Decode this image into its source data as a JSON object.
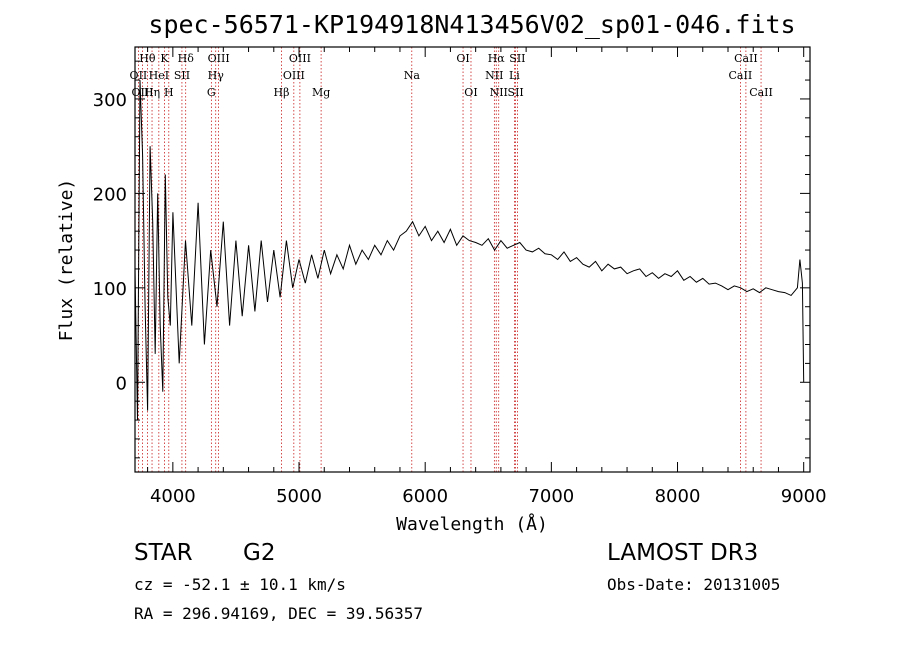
{
  "chart_data": {
    "type": "line",
    "title": "spec-56571-KP194918N413456V02_sp01-046.fits",
    "xlabel": "Wavelength (Å)",
    "ylabel": "Flux (relative)",
    "xlim": [
      3700,
      9050
    ],
    "ylim": [
      -95,
      355
    ],
    "xticks": [
      4000,
      5000,
      6000,
      7000,
      8000,
      9000
    ],
    "yticks": [
      0,
      100,
      200,
      300
    ],
    "grid": false,
    "series": [
      {
        "name": "spectrum",
        "x": [
          3700,
          3720,
          3740,
          3760,
          3780,
          3800,
          3820,
          3840,
          3860,
          3880,
          3900,
          3920,
          3940,
          3960,
          3980,
          4000,
          4050,
          4100,
          4150,
          4200,
          4250,
          4300,
          4350,
          4400,
          4450,
          4500,
          4550,
          4600,
          4650,
          4700,
          4750,
          4800,
          4850,
          4900,
          4950,
          5000,
          5050,
          5100,
          5150,
          5200,
          5250,
          5300,
          5350,
          5400,
          5450,
          5500,
          5550,
          5600,
          5650,
          5700,
          5750,
          5800,
          5850,
          5900,
          5950,
          6000,
          6050,
          6100,
          6150,
          6200,
          6250,
          6300,
          6350,
          6400,
          6450,
          6500,
          6550,
          6600,
          6650,
          6700,
          6750,
          6800,
          6850,
          6900,
          6950,
          7000,
          7050,
          7100,
          7150,
          7200,
          7250,
          7300,
          7350,
          7400,
          7450,
          7500,
          7550,
          7600,
          7650,
          7700,
          7750,
          7800,
          7850,
          7900,
          7950,
          8000,
          8050,
          8100,
          8150,
          8200,
          8250,
          8300,
          8350,
          8400,
          8450,
          8500,
          8550,
          8600,
          8650,
          8700,
          8750,
          8800,
          8850,
          8900,
          8950,
          8970,
          8990,
          9000
        ],
        "values": [
          120,
          -40,
          320,
          240,
          80,
          -30,
          250,
          170,
          30,
          200,
          60,
          -10,
          220,
          90,
          60,
          180,
          20,
          150,
          60,
          190,
          40,
          140,
          80,
          170,
          60,
          150,
          70,
          145,
          75,
          150,
          85,
          140,
          90,
          150,
          100,
          130,
          105,
          135,
          110,
          140,
          115,
          135,
          120,
          145,
          125,
          140,
          130,
          145,
          135,
          150,
          140,
          155,
          160,
          170,
          155,
          165,
          150,
          160,
          148,
          162,
          145,
          155,
          150,
          148,
          145,
          152,
          140,
          150,
          142,
          145,
          148,
          140,
          138,
          142,
          136,
          135,
          130,
          138,
          128,
          132,
          125,
          122,
          128,
          118,
          125,
          120,
          122,
          115,
          118,
          120,
          112,
          116,
          110,
          115,
          112,
          118,
          108,
          112,
          106,
          110,
          104,
          105,
          102,
          98,
          102,
          100,
          96,
          99,
          95,
          100,
          98,
          96,
          95,
          92,
          100,
          130,
          105,
          0
        ]
      }
    ],
    "lines": [
      {
        "label": "Hθ",
        "wavelength": 3798,
        "row": 1
      },
      {
        "label": "OII",
        "wavelength": 3727,
        "row": 2
      },
      {
        "label": "OIII",
        "wavelength": 3760,
        "row": 3
      },
      {
        "label": "Hη",
        "wavelength": 3835,
        "row": 3
      },
      {
        "label": "HeI",
        "wavelength": 3889,
        "row": 2
      },
      {
        "label": "K",
        "wavelength": 3934,
        "row": 1
      },
      {
        "label": "H",
        "wavelength": 3968,
        "row": 3
      },
      {
        "label": "SII",
        "wavelength": 4072,
        "row": 2
      },
      {
        "label": "Hδ",
        "wavelength": 4102,
        "row": 1
      },
      {
        "label": "G",
        "wavelength": 4305,
        "row": 3
      },
      {
        "label": "Hγ",
        "wavelength": 4340,
        "row": 2
      },
      {
        "label": "OIII",
        "wavelength": 4363,
        "row": 1
      },
      {
        "label": "Hβ",
        "wavelength": 4861,
        "row": 3
      },
      {
        "label": "OIII",
        "wavelength": 4959,
        "row": 2
      },
      {
        "label": "OIII",
        "wavelength": 5007,
        "row": 1
      },
      {
        "label": "Mg",
        "wavelength": 5175,
        "row": 3
      },
      {
        "label": "Na",
        "wavelength": 5894,
        "row": 2
      },
      {
        "label": "OI",
        "wavelength": 6300,
        "row": 1
      },
      {
        "label": "OI",
        "wavelength": 6363,
        "row": 3
      },
      {
        "label": "NII",
        "wavelength": 6548,
        "row": 2
      },
      {
        "label": "Hα",
        "wavelength": 6563,
        "row": 1
      },
      {
        "label": "NII",
        "wavelength": 6583,
        "row": 3
      },
      {
        "label": "Li",
        "wavelength": 6707,
        "row": 2
      },
      {
        "label": "SII",
        "wavelength": 6717,
        "row": 3
      },
      {
        "label": "SII",
        "wavelength": 6731,
        "row": 1
      },
      {
        "label": "CaII",
        "wavelength": 8498,
        "row": 2
      },
      {
        "label": "CaII",
        "wavelength": 8542,
        "row": 1
      },
      {
        "label": "CaII",
        "wavelength": 8662,
        "row": 3
      }
    ]
  },
  "info": {
    "class": "STAR",
    "subclass": "G2",
    "survey": "LAMOST DR3",
    "cz": "cz = -52.1 ± 10.1 km/s",
    "obs_date": "Obs-Date: 20131005",
    "coords": "RA = 296.94169, DEC =  39.56357"
  },
  "colors": {
    "line_marker": "#c00000",
    "spectrum": "#000000",
    "axes": "#000000",
    "background": "#ffffff"
  }
}
